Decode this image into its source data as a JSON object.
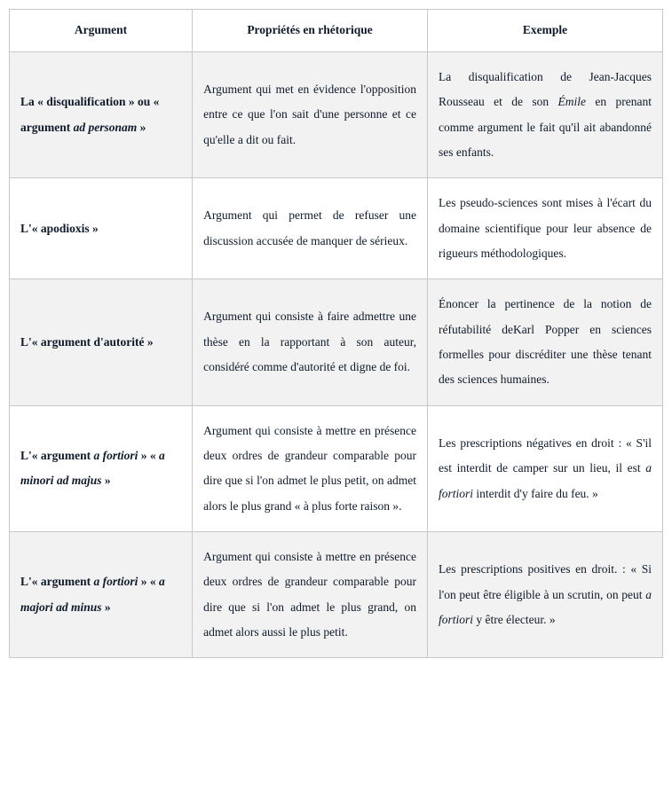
{
  "headers": {
    "argument": "Argument",
    "properties": "Propriétés en rhétorique",
    "example": "Exemple"
  },
  "rows": [
    {
      "argument": "La « disqualification » ou « argument <em>ad personam</em> »",
      "properties": "Argument qui met en évidence l'opposition entre ce que l'on sait d'une personne et ce qu'elle a dit ou fait.",
      "example": "La disqualification de Jean-Jacques Rousseau et de son <em>Émile</em> en prenant comme argument le fait qu'il ait abandonné ses enfants.",
      "alt": true
    },
    {
      "argument": "L'« apodioxis »",
      "properties": "Argument qui permet de refuser une discussion accusée de manquer de sérieux.",
      "example": "Les pseudo-sciences sont mises à l'écart du domaine scientifique pour leur absence de rigueurs méthodologiques.",
      "alt": false
    },
    {
      "argument": "L'« argument d'autorité »",
      "properties": "Argument qui consiste à faire admettre une thèse en la rapportant à son auteur, considéré comme d'autorité et digne de foi.",
      "example": "Énoncer la pertinence de la notion de réfutabilité deKarl Popper en sciences formelles pour discréditer une thèse tenant des sciences humaines.",
      "alt": true
    },
    {
      "argument": "L'« argument <em>a fortiori</em> » « <em>a minori ad majus</em> »",
      "properties": "Argument qui consiste à mettre en présence deux ordres de grandeur comparable pour dire que si l'on admet le plus petit, on admet alors le plus grand « à plus forte raison ».",
      "example": "Les prescriptions négatives en droit : « S'il est interdit de camper sur un lieu, il est <em>a fortiori</em> interdit d'y faire du feu. »",
      "alt": false
    },
    {
      "argument": "L'« argument <em>a fortiori</em> » « <em>a majori ad minus</em> »",
      "properties": "Argument qui consiste à mettre en présence deux ordres de grandeur comparable pour dire que si l'on admet le plus grand, on admet alors aussi le plus petit.",
      "example": "Les prescriptions positives en droit. : « Si l'on peut être éligible à un scrutin, on peut <em>a fortiori</em> y être électeur. »",
      "alt": true
    }
  ]
}
